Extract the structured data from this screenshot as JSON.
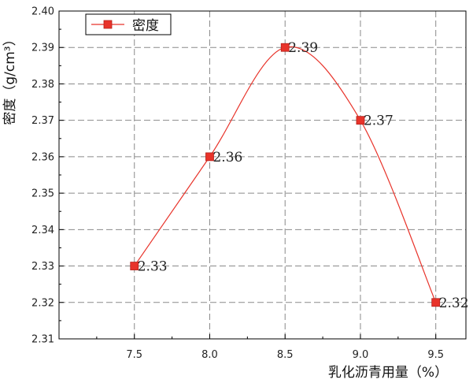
{
  "chart_data": {
    "type": "line",
    "xlabel": "乳化沥青用量（%）",
    "ylabel": "密度（g/cm³）",
    "x": [
      7.5,
      8.0,
      8.5,
      9.0,
      9.5
    ],
    "xticks": [
      "7.5",
      "8.0",
      "8.5",
      "9.0",
      "9.5"
    ],
    "xlim": [
      7.0,
      9.7
    ],
    "ylim": [
      2.31,
      2.4
    ],
    "yticks": [
      "2.31",
      "2.32",
      "2.33",
      "2.34",
      "2.35",
      "2.36",
      "2.37",
      "2.38",
      "2.39",
      "2.40"
    ],
    "series": [
      {
        "name": "密度",
        "values": [
          2.33,
          2.36,
          2.39,
          2.37,
          2.32
        ],
        "labels": [
          "2.33",
          "2.36",
          "2.39",
          "2.37",
          "2.32"
        ],
        "color": "#e8332a",
        "curve": "smooth"
      }
    ],
    "grid": true,
    "grid_style": "dashed",
    "legend_position": "top-left"
  }
}
